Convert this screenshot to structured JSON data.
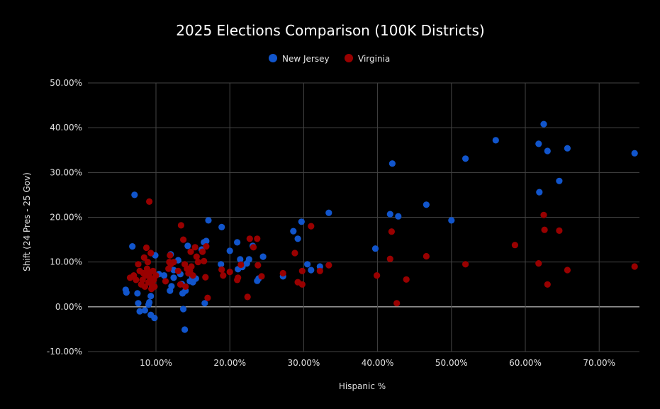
{
  "chart_data": {
    "type": "scatter",
    "title": "2025 Elections Comparison (100K Districts)",
    "xlabel": "Hispanic %",
    "ylabel": "Shift (24 Pres - 25 Gov)",
    "xlim": [
      0,
      0.755
    ],
    "ylim": [
      -0.1,
      0.5
    ],
    "x_ticks": [
      0.1,
      0.2,
      0.3,
      0.4,
      0.5,
      0.6,
      0.7
    ],
    "x_tick_labels": [
      "10.00%",
      "20.00%",
      "30.00%",
      "40.00%",
      "50.00%",
      "60.00%",
      "70.00%"
    ],
    "y_ticks": [
      -0.1,
      0.0,
      0.1,
      0.2,
      0.3,
      0.4,
      0.5
    ],
    "y_tick_labels": [
      "-10.00%",
      "0.00%",
      "10.00%",
      "20.00%",
      "30.00%",
      "40.00%",
      "50.00%"
    ],
    "grid": true,
    "legend_position": "top",
    "series": [
      {
        "name": "New Jersey",
        "color": "#1155cc",
        "points": [
          [
            0.071,
            0.25
          ],
          [
            0.068,
            0.135
          ],
          [
            0.059,
            0.038
          ],
          [
            0.06,
            0.032
          ],
          [
            0.075,
            0.03
          ],
          [
            0.076,
            0.008
          ],
          [
            0.078,
            -0.01
          ],
          [
            0.085,
            -0.008
          ],
          [
            0.09,
            0.005
          ],
          [
            0.091,
            0.01
          ],
          [
            0.093,
            -0.018
          ],
          [
            0.098,
            -0.025
          ],
          [
            0.093,
            0.024
          ],
          [
            0.095,
            0.046
          ],
          [
            0.099,
            0.115
          ],
          [
            0.104,
            0.073
          ],
          [
            0.111,
            0.07
          ],
          [
            0.119,
            0.036
          ],
          [
            0.121,
            0.046
          ],
          [
            0.12,
            0.117
          ],
          [
            0.124,
            0.065
          ],
          [
            0.124,
            0.082
          ],
          [
            0.13,
            0.104
          ],
          [
            0.133,
            0.073
          ],
          [
            0.135,
            0.051
          ],
          [
            0.136,
            0.03
          ],
          [
            0.137,
            -0.005
          ],
          [
            0.139,
            -0.051
          ],
          [
            0.14,
            0.036
          ],
          [
            0.143,
            0.136
          ],
          [
            0.146,
            0.057
          ],
          [
            0.149,
            0.068
          ],
          [
            0.15,
            0.055
          ],
          [
            0.154,
            0.063
          ],
          [
            0.162,
            0.128
          ],
          [
            0.165,
            0.144
          ],
          [
            0.166,
            0.008
          ],
          [
            0.168,
            0.147
          ],
          [
            0.171,
            0.193
          ],
          [
            0.188,
            0.095
          ],
          [
            0.189,
            0.178
          ],
          [
            0.2,
            0.125
          ],
          [
            0.21,
            0.144
          ],
          [
            0.211,
            0.084
          ],
          [
            0.214,
            0.106
          ],
          [
            0.217,
            0.089
          ],
          [
            0.223,
            0.097
          ],
          [
            0.226,
            0.106
          ],
          [
            0.231,
            0.136
          ],
          [
            0.237,
            0.058
          ],
          [
            0.239,
            0.063
          ],
          [
            0.245,
            0.112
          ],
          [
            0.272,
            0.068
          ],
          [
            0.286,
            0.169
          ],
          [
            0.292,
            0.152
          ],
          [
            0.297,
            0.19
          ],
          [
            0.305,
            0.095
          ],
          [
            0.31,
            0.082
          ],
          [
            0.322,
            0.09
          ],
          [
            0.334,
            0.21
          ],
          [
            0.397,
            0.13
          ],
          [
            0.417,
            0.207
          ],
          [
            0.42,
            0.32
          ],
          [
            0.428,
            0.202
          ],
          [
            0.466,
            0.228
          ],
          [
            0.5,
            0.193
          ],
          [
            0.519,
            0.331
          ],
          [
            0.56,
            0.372
          ],
          [
            0.618,
            0.364
          ],
          [
            0.625,
            0.408
          ],
          [
            0.63,
            0.348
          ],
          [
            0.619,
            0.256
          ],
          [
            0.646,
            0.281
          ],
          [
            0.657,
            0.354
          ],
          [
            0.748,
            0.343
          ]
        ]
      },
      {
        "name": "Virginia",
        "color": "#990000",
        "points": [
          [
            0.091,
            0.235
          ],
          [
            0.065,
            0.065
          ],
          [
            0.07,
            0.07
          ],
          [
            0.073,
            0.06
          ],
          [
            0.076,
            0.095
          ],
          [
            0.078,
            0.08
          ],
          [
            0.08,
            0.05
          ],
          [
            0.082,
            0.06
          ],
          [
            0.083,
            0.075
          ],
          [
            0.084,
            0.11
          ],
          [
            0.085,
            0.045
          ],
          [
            0.086,
            0.07
          ],
          [
            0.087,
            0.132
          ],
          [
            0.088,
            0.085
          ],
          [
            0.089,
            0.1
          ],
          [
            0.09,
            0.055
          ],
          [
            0.091,
            0.075
          ],
          [
            0.092,
            0.065
          ],
          [
            0.093,
            0.12
          ],
          [
            0.094,
            0.04
          ],
          [
            0.095,
            0.05
          ],
          [
            0.096,
            0.08
          ],
          [
            0.097,
            0.06
          ],
          [
            0.098,
            0.045
          ],
          [
            0.1,
            0.07
          ],
          [
            0.113,
            0.057
          ],
          [
            0.117,
            0.085
          ],
          [
            0.118,
            0.1
          ],
          [
            0.119,
            0.115
          ],
          [
            0.12,
            0.095
          ],
          [
            0.124,
            0.1
          ],
          [
            0.13,
            0.08
          ],
          [
            0.133,
            0.05
          ],
          [
            0.134,
            0.182
          ],
          [
            0.137,
            0.15
          ],
          [
            0.139,
            0.095
          ],
          [
            0.14,
            0.045
          ],
          [
            0.142,
            0.085
          ],
          [
            0.144,
            0.075
          ],
          [
            0.146,
            0.08
          ],
          [
            0.147,
            0.123
          ],
          [
            0.148,
            0.09
          ],
          [
            0.15,
            0.07
          ],
          [
            0.153,
            0.133
          ],
          [
            0.155,
            0.112
          ],
          [
            0.157,
            0.1
          ],
          [
            0.163,
            0.123
          ],
          [
            0.165,
            0.102
          ],
          [
            0.167,
            0.066
          ],
          [
            0.168,
            0.135
          ],
          [
            0.17,
            0.02
          ],
          [
            0.189,
            0.083
          ],
          [
            0.191,
            0.07
          ],
          [
            0.2,
            0.078
          ],
          [
            0.21,
            0.06
          ],
          [
            0.211,
            0.065
          ],
          [
            0.215,
            0.094
          ],
          [
            0.224,
            0.022
          ],
          [
            0.227,
            0.152
          ],
          [
            0.232,
            0.133
          ],
          [
            0.237,
            0.152
          ],
          [
            0.238,
            0.093
          ],
          [
            0.243,
            0.068
          ],
          [
            0.272,
            0.075
          ],
          [
            0.288,
            0.12
          ],
          [
            0.292,
            0.055
          ],
          [
            0.298,
            0.05
          ],
          [
            0.298,
            0.08
          ],
          [
            0.31,
            0.18
          ],
          [
            0.322,
            0.08
          ],
          [
            0.334,
            0.093
          ],
          [
            0.399,
            0.07
          ],
          [
            0.417,
            0.107
          ],
          [
            0.419,
            0.168
          ],
          [
            0.426,
            0.008
          ],
          [
            0.439,
            0.061
          ],
          [
            0.466,
            0.113
          ],
          [
            0.519,
            0.095
          ],
          [
            0.586,
            0.138
          ],
          [
            0.618,
            0.097
          ],
          [
            0.625,
            0.205
          ],
          [
            0.626,
            0.172
          ],
          [
            0.63,
            0.05
          ],
          [
            0.646,
            0.17
          ],
          [
            0.657,
            0.082
          ],
          [
            0.748,
            0.09
          ]
        ]
      }
    ]
  }
}
